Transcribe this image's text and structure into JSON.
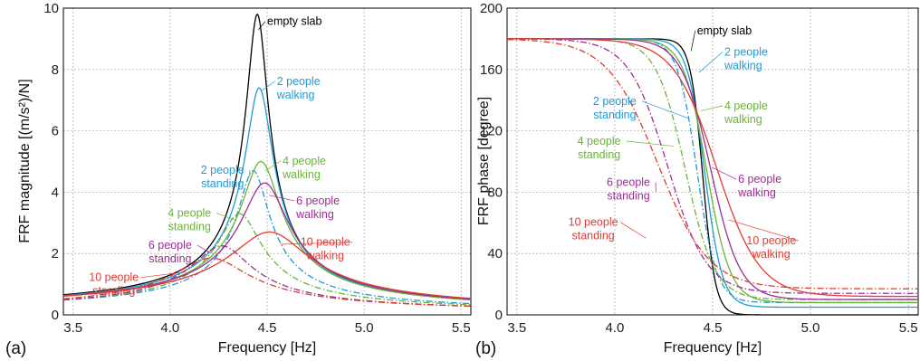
{
  "figure": {
    "panel_labels": [
      "(a)",
      "(b)"
    ]
  },
  "chart_data": [
    {
      "type": "line",
      "panel": "(a)",
      "xlabel": "Frequency [Hz]",
      "ylabel": "FRF magnitude [(m/s²)/N]",
      "xlim": [
        3.45,
        5.55
      ],
      "ylim": [
        0,
        10
      ],
      "xticks": [
        3.5,
        4.0,
        4.5,
        5.0,
        5.5
      ],
      "xtick_labels": [
        "3.5",
        "4.0",
        "4.5",
        "5.0",
        "5.5"
      ],
      "yticks": [
        0,
        2,
        4,
        6,
        8,
        10
      ],
      "ytick_labels": [
        "0",
        "2",
        "4",
        "6",
        "8",
        "10"
      ],
      "grid": true,
      "series": [
        {
          "name": "empty slab",
          "color": "#000000",
          "dash": "solid",
          "peak_x": 4.45,
          "peak_y": 9.8,
          "width": 0.055,
          "tail": 0.3
        },
        {
          "name": "2 people walking",
          "color": "#1f9ad6",
          "dash": "solid",
          "peak_x": 4.46,
          "peak_y": 7.4,
          "width": 0.07,
          "tail": 0.32
        },
        {
          "name": "2 people standing",
          "color": "#1f9ad6",
          "dash": "dashdot",
          "peak_x": 4.43,
          "peak_y": 4.7,
          "width": 0.08,
          "tail": 0.3
        },
        {
          "name": "4 people walking",
          "color": "#6ab43a",
          "dash": "solid",
          "peak_x": 4.47,
          "peak_y": 5.0,
          "width": 0.1,
          "tail": 0.33
        },
        {
          "name": "4 people standing",
          "color": "#6ab43a",
          "dash": "dashdot",
          "peak_x": 4.36,
          "peak_y": 3.3,
          "width": 0.11,
          "tail": 0.28
        },
        {
          "name": "6 people walking",
          "color": "#9c2d96",
          "dash": "solid",
          "peak_x": 4.49,
          "peak_y": 4.3,
          "width": 0.12,
          "tail": 0.35
        },
        {
          "name": "6 people standing",
          "color": "#9c2d96",
          "dash": "dashdot",
          "peak_x": 4.27,
          "peak_y": 2.25,
          "width": 0.15,
          "tail": 0.26
        },
        {
          "name": "10 people walking",
          "color": "#e03c31",
          "dash": "solid",
          "peak_x": 4.52,
          "peak_y": 2.7,
          "width": 0.2,
          "tail": 0.37
        },
        {
          "name": "10 people standing",
          "color": "#e03c31",
          "dash": "dashdot",
          "peak_x": 4.22,
          "peak_y": 1.85,
          "width": 0.19,
          "tail": 0.26
        }
      ],
      "annotations": [
        {
          "lines": [
            "empty slab"
          ],
          "color": "#000000",
          "tx": 4.5,
          "ty": 9.45,
          "anchor": "start",
          "ax": 4.455,
          "ay": 9.3
        },
        {
          "lines": [
            "2 people",
            "walking"
          ],
          "color": "#1f9ad6",
          "tx": 4.55,
          "ty": 7.5,
          "anchor": "start",
          "ax": 4.47,
          "ay": 7.3
        },
        {
          "lines": [
            "2 people",
            "standing"
          ],
          "color": "#1f9ad6",
          "tx": 4.27,
          "ty": 4.6,
          "anchor": "middle",
          "ax": 4.41,
          "ay": 4.5
        },
        {
          "lines": [
            "4 people",
            "walking"
          ],
          "color": "#6ab43a",
          "tx": 4.58,
          "ty": 4.9,
          "anchor": "start",
          "ax": 4.49,
          "ay": 4.7
        },
        {
          "lines": [
            "4 people",
            "standing"
          ],
          "color": "#6ab43a",
          "tx": 4.1,
          "ty": 3.2,
          "anchor": "middle",
          "ax": 4.33,
          "ay": 3.1
        },
        {
          "lines": [
            "6 people",
            "walking"
          ],
          "color": "#9c2d96",
          "tx": 4.65,
          "ty": 3.6,
          "anchor": "start",
          "ax": 4.51,
          "ay": 3.9
        },
        {
          "lines": [
            "6 people",
            "standing"
          ],
          "color": "#9c2d96",
          "tx": 4.0,
          "ty": 2.15,
          "anchor": "middle",
          "ax": 4.2,
          "ay": 2.05
        },
        {
          "lines": [
            "10 people",
            "walking"
          ],
          "color": "#e03c31",
          "tx": 4.8,
          "ty": 2.25,
          "anchor": "middle",
          "ax": 4.57,
          "ay": 2.3
        },
        {
          "lines": [
            "10 people",
            "standing"
          ],
          "color": "#e03c31",
          "tx": 3.71,
          "ty": 1.1,
          "anchor": "middle",
          "ax": 4.08,
          "ay": 1.4
        }
      ]
    },
    {
      "type": "line",
      "panel": "(b)",
      "xlabel": "Frequency [Hz]",
      "ylabel": "FRF phase [degree]",
      "xlim": [
        3.45,
        5.55
      ],
      "ylim": [
        0,
        200
      ],
      "xticks": [
        3.5,
        4.0,
        4.5,
        5.0,
        5.5
      ],
      "xtick_labels": [
        "3.5",
        "4.0",
        "4.5",
        "5.0",
        "5.5"
      ],
      "yticks": [
        0,
        40,
        80,
        120,
        160,
        200
      ],
      "ytick_labels": [
        "0",
        "40",
        "80",
        "120",
        "160",
        "200"
      ],
      "grid": true,
      "series": [
        {
          "name": "empty slab",
          "color": "#000000",
          "dash": "solid",
          "center": 4.45,
          "width": 0.032,
          "end": 0
        },
        {
          "name": "2 people walking",
          "color": "#1f9ad6",
          "dash": "solid",
          "center": 4.46,
          "width": 0.045,
          "end": 5
        },
        {
          "name": "2 people standing",
          "color": "#1f9ad6",
          "dash": "dashdot",
          "center": 4.42,
          "width": 0.05,
          "end": 8
        },
        {
          "name": "4 people walking",
          "color": "#6ab43a",
          "dash": "solid",
          "center": 4.47,
          "width": 0.06,
          "end": 8
        },
        {
          "name": "4 people standing",
          "color": "#6ab43a",
          "dash": "dashdot",
          "center": 4.36,
          "width": 0.075,
          "end": 10
        },
        {
          "name": "6 people walking",
          "color": "#9c2d96",
          "dash": "solid",
          "center": 4.49,
          "width": 0.075,
          "end": 10
        },
        {
          "name": "6 people standing",
          "color": "#9c2d96",
          "dash": "dashdot",
          "center": 4.27,
          "width": 0.1,
          "end": 14
        },
        {
          "name": "10 people walking",
          "color": "#e03c31",
          "dash": "solid",
          "center": 4.52,
          "width": 0.11,
          "end": 12
        },
        {
          "name": "10 people standing",
          "color": "#e03c31",
          "dash": "dashdot",
          "center": 4.22,
          "width": 0.13,
          "end": 17
        }
      ],
      "annotations": [
        {
          "lines": [
            "empty slab"
          ],
          "color": "#000000",
          "tx": 4.42,
          "ty": 183,
          "anchor": "start",
          "ax": 4.39,
          "ay": 172
        },
        {
          "lines": [
            "2 people",
            "walking"
          ],
          "color": "#1f9ad6",
          "tx": 4.56,
          "ty": 169,
          "anchor": "start",
          "ax": 4.43,
          "ay": 158
        },
        {
          "lines": [
            "2 people",
            "standing"
          ],
          "color": "#1f9ad6",
          "tx": 4.0,
          "ty": 137,
          "anchor": "middle",
          "ax": 4.38,
          "ay": 128
        },
        {
          "lines": [
            "4 people",
            "walking"
          ],
          "color": "#6ab43a",
          "tx": 4.56,
          "ty": 134,
          "anchor": "start",
          "ax": 4.44,
          "ay": 133
        },
        {
          "lines": [
            "4 people",
            "standing"
          ],
          "color": "#6ab43a",
          "tx": 3.92,
          "ty": 111,
          "anchor": "middle",
          "ax": 4.3,
          "ay": 110
        },
        {
          "lines": [
            "6 people",
            "walking"
          ],
          "color": "#9c2d96",
          "tx": 4.63,
          "ty": 86,
          "anchor": "start",
          "ax": 4.5,
          "ay": 96
        },
        {
          "lines": [
            "6 people",
            "standing"
          ],
          "color": "#9c2d96",
          "tx": 4.07,
          "ty": 84,
          "anchor": "middle",
          "ax": 4.21,
          "ay": 80
        },
        {
          "lines": [
            "10 people",
            "walking"
          ],
          "color": "#e03c31",
          "tx": 4.8,
          "ty": 46,
          "anchor": "middle",
          "ax": 4.58,
          "ay": 62
        },
        {
          "lines": [
            "10 people",
            "standing"
          ],
          "color": "#e03c31",
          "tx": 3.89,
          "ty": 58,
          "anchor": "middle",
          "ax": 4.16,
          "ay": 50
        }
      ]
    }
  ]
}
